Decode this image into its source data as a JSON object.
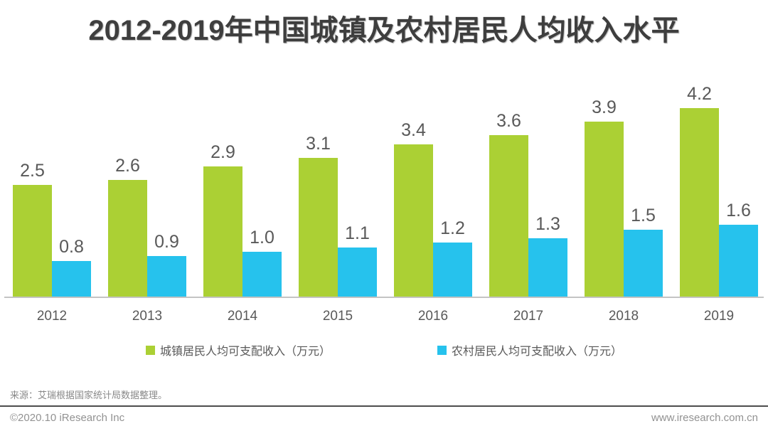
{
  "title": "2012-2019年中国城镇及农村居民人均收入水平",
  "chart_data": {
    "type": "bar",
    "categories": [
      "2012",
      "2013",
      "2014",
      "2015",
      "2016",
      "2017",
      "2018",
      "2019"
    ],
    "series": [
      {
        "key": "urban",
        "name": "城镇居民人均可支配收入（万元）",
        "color": "#abd034",
        "values": [
          2.5,
          2.6,
          2.9,
          3.1,
          3.4,
          3.6,
          3.9,
          4.2
        ]
      },
      {
        "key": "rural",
        "name": "农村居民人均可支配收入（万元）",
        "color": "#26c2ed",
        "values": [
          0.8,
          0.9,
          1.0,
          1.1,
          1.2,
          1.3,
          1.5,
          1.6
        ]
      }
    ],
    "ylim": [
      0,
      4.5
    ],
    "unit": "万元",
    "grid": false,
    "legend_position": "bottom",
    "value_labels_shown": true,
    "value_label_decimals": 1
  },
  "source_note": "来源：艾瑞根据国家统计局数据整理。",
  "footer": {
    "copyright": "©2020.10 iResearch Inc",
    "website": "www.iresearch.com.cn"
  },
  "colors": {
    "title_text": "#3e3e3e",
    "label_text": "#595959",
    "axis_line": "#c4c4c4",
    "divider_line": "#4d4d4d",
    "footer_text": "#929292"
  }
}
